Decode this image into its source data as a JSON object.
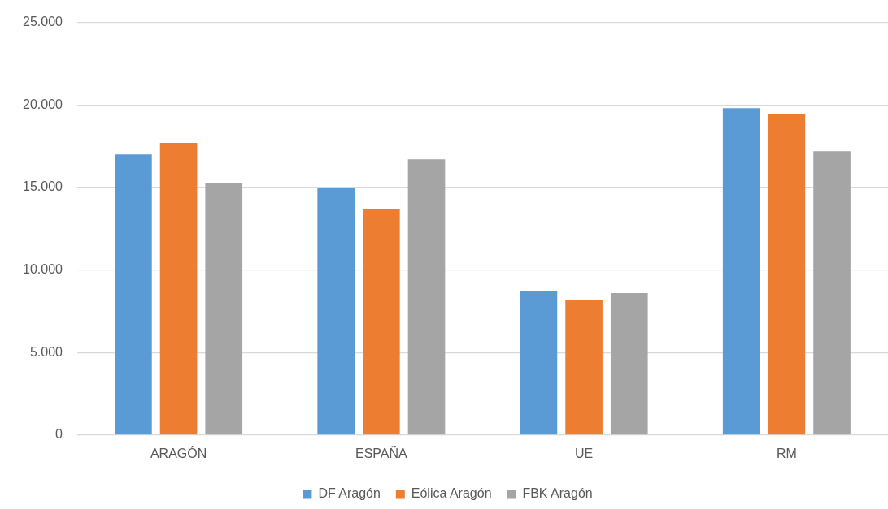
{
  "chart_data": {
    "type": "bar",
    "categories": [
      "ARAGÓN",
      "ESPAÑA",
      "UE",
      "RM"
    ],
    "series": [
      {
        "name": "DF Aragón",
        "color": "#5b9bd5",
        "values": [
          17000,
          15000,
          8750,
          19800
        ]
      },
      {
        "name": "Eólica Aragón",
        "color": "#ed7d31",
        "values": [
          17700,
          13700,
          8200,
          19450
        ]
      },
      {
        "name": "FBK Aragón",
        "color": "#a5a5a5",
        "values": [
          15250,
          16700,
          8600,
          17200
        ]
      }
    ],
    "ylim": [
      0,
      25000
    ],
    "yticks": [
      {
        "value": 0,
        "label": "0"
      },
      {
        "value": 5000,
        "label": "5.000"
      },
      {
        "value": 10000,
        "label": "10.000"
      },
      {
        "value": 15000,
        "label": "15.000"
      },
      {
        "value": 20000,
        "label": "20.000"
      },
      {
        "value": 25000,
        "label": "25.000"
      }
    ],
    "grid": "y",
    "legend": "bottom"
  }
}
